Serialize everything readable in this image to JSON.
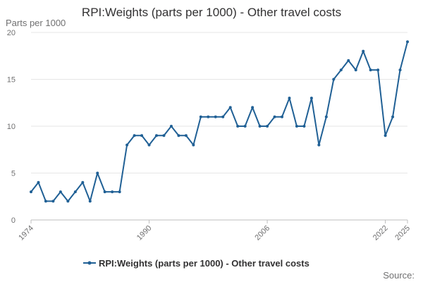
{
  "chart_data": {
    "type": "line",
    "title": "RPI:Weights (parts per 1000) - Other travel costs",
    "ylabel": "Parts per 1000",
    "xlabel": "",
    "ylim": [
      0,
      20
    ],
    "yticks": [
      0,
      5,
      10,
      15,
      20
    ],
    "xtick_labels": [
      "1974",
      "1990",
      "2006",
      "2022",
      "2025"
    ],
    "grid": true,
    "legend_position": "bottom",
    "source_label": "Source:",
    "series": [
      {
        "name": "RPI:Weights (parts per 1000) - Other travel costs",
        "color": "#206095",
        "x": [
          1974,
          1975,
          1976,
          1977,
          1978,
          1979,
          1980,
          1981,
          1982,
          1983,
          1984,
          1985,
          1986,
          1987,
          1988,
          1989,
          1990,
          1991,
          1992,
          1993,
          1994,
          1995,
          1996,
          1997,
          1998,
          1999,
          2000,
          2001,
          2002,
          2003,
          2004,
          2005,
          2006,
          2007,
          2008,
          2009,
          2010,
          2011,
          2012,
          2013,
          2014,
          2015,
          2016,
          2017,
          2018,
          2019,
          2020,
          2021,
          2022,
          2023,
          2024,
          2025
        ],
        "values": [
          3,
          4,
          2,
          2,
          3,
          2,
          3,
          4,
          2,
          5,
          3,
          3,
          3,
          8,
          9,
          9,
          8,
          9,
          9,
          10,
          9,
          9,
          8,
          11,
          11,
          11,
          11,
          12,
          10,
          10,
          12,
          10,
          10,
          11,
          11,
          13,
          10,
          10,
          13,
          8,
          11,
          15,
          16,
          17,
          16,
          18,
          16,
          16,
          9,
          11,
          16,
          19
        ]
      }
    ]
  }
}
